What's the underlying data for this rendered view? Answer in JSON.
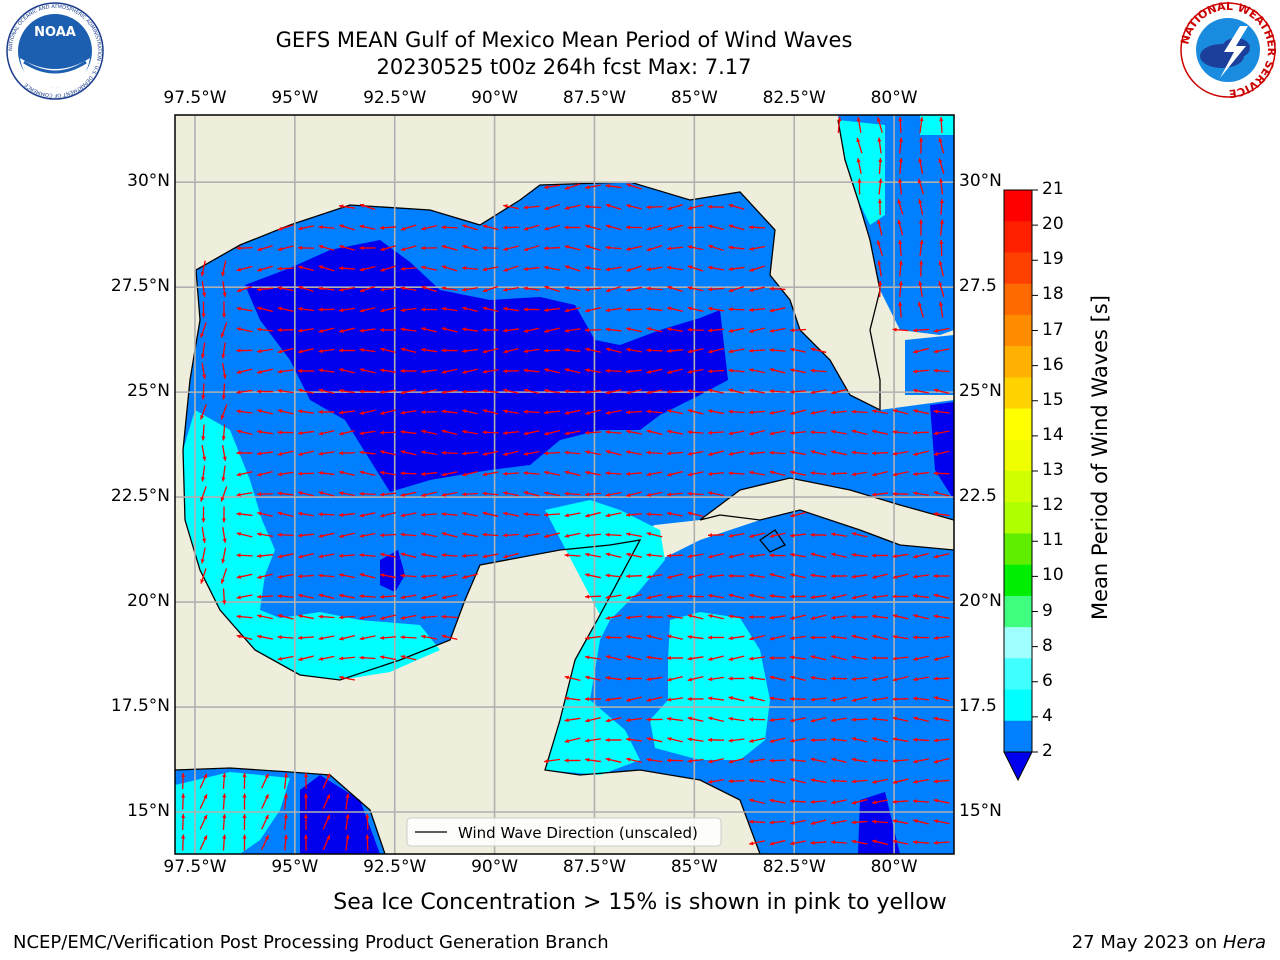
{
  "title": {
    "line1": "GEFS MEAN Gulf of Mexico Mean Period of Wind Waves",
    "line2": "20230525 t00z 264h fcst   Max: 7.17"
  },
  "logos": {
    "left": "noaa-logo",
    "left_text": "NOAA",
    "left_ring_text": "NATIONAL OCEANIC AND ATMOSPHERIC ADMINISTRATION · U.S. DEPARTMENT OF COMMERCE",
    "right": "national-weather-service-logo",
    "right_ring_text": "NATIONAL WEATHER SERVICE"
  },
  "map": {
    "lon_ticks": [
      "97.5°W",
      "95°W",
      "92.5°W",
      "90°W",
      "87.5°W",
      "85°W",
      "82.5°W",
      "80°W"
    ],
    "lat_ticks_left": [
      "30°N",
      "27.5°N",
      "25°N",
      "22.5°N",
      "20°N",
      "17.5°N",
      "15°N"
    ],
    "lat_ticks_right": [
      "30°N",
      "27.5",
      "25°N",
      "22.5",
      "20°N",
      "17.5",
      "15°N"
    ],
    "lon_range": [
      -98,
      -78.5
    ],
    "lat_range": [
      14,
      31.6
    ],
    "legend_label": "Wind Wave Direction (unscaled)",
    "colors": {
      "land": "#efeedc",
      "band_0_2": "#0000ee",
      "band_2_4": "#0080ff",
      "band_4_6": "#00ffff",
      "arrow": "#ff0000",
      "grid": "#b0b0b0"
    }
  },
  "colorbar": {
    "label": "Mean Period of Wind Waves [s]",
    "ticks": [
      "21",
      "20",
      "19",
      "18",
      "17",
      "16",
      "15",
      "14",
      "13",
      "12",
      "11",
      "10",
      "9",
      "8",
      "6",
      "4",
      "2"
    ],
    "colors": [
      "#ff0000",
      "#ff2000",
      "#ff4000",
      "#ff6a00",
      "#ff8c00",
      "#ffb000",
      "#ffd200",
      "#ffff00",
      "#f0ff00",
      "#d0ff00",
      "#b0ff00",
      "#60ee00",
      "#00ee00",
      "#40ff80",
      "#a0ffff",
      "#40ffff",
      "#00ffff",
      "#0080ff"
    ],
    "under_color": "#0000ee"
  },
  "note": "Sea Ice Concentration > 15% is shown in pink to yellow",
  "footer": {
    "left": "NCEP/EMC/Verification Post Processing Product Generation Branch",
    "right_date": "27 May 2023 on ",
    "right_machine": "Hera"
  }
}
